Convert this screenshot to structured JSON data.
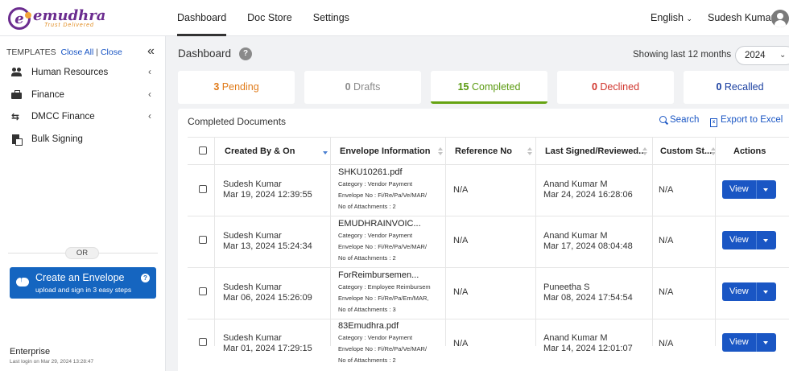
{
  "brand": {
    "name": "emudhra",
    "tagline": "Trust Delivered",
    "accent": "#6b2c8f"
  },
  "nav": {
    "items": [
      "Dashboard",
      "Doc Store",
      "Settings"
    ],
    "active": "Dashboard"
  },
  "header": {
    "language": "English",
    "user_name": "Sudesh Kumar"
  },
  "sidebar": {
    "templates_label": "TEMPLATES",
    "close_all": "Close All",
    "separator": "|",
    "close": "Close",
    "collapse_icon": "«",
    "items": [
      {
        "label": "Human Resources",
        "icon": "people-icon",
        "chevron": "‹"
      },
      {
        "label": "Finance",
        "icon": "briefcase-icon",
        "chevron": "‹"
      },
      {
        "label": "DMCC Finance",
        "icon": "swap-icon",
        "chevron": "‹"
      },
      {
        "label": "Bulk Signing",
        "icon": "documents-icon",
        "chevron": ""
      }
    ],
    "or_label": "OR",
    "create": {
      "title": "Create an Envelope",
      "subtitle": "upload and sign in 3 easy steps",
      "help": "?"
    },
    "plan": "Enterprise",
    "last_login": "Last login on Mar 29, 2024 13:28:47"
  },
  "dashboard": {
    "title": "Dashboard",
    "help": "?",
    "showing_label": "Showing last 12 months",
    "year": "2024",
    "stats": [
      {
        "count": "3",
        "label": "Pending",
        "color": "#e07b1a"
      },
      {
        "count": "0",
        "label": "Drafts",
        "color": "#8a8a8a"
      },
      {
        "count": "15",
        "label": "Completed",
        "color": "#5a9a10"
      },
      {
        "count": "0",
        "label": "Declined",
        "color": "#d0342c"
      },
      {
        "count": "0",
        "label": "Recalled",
        "color": "#1a3fa0"
      }
    ]
  },
  "table": {
    "title": "Completed Documents",
    "search_label": "Search",
    "export_label": "Export to Excel",
    "columns": [
      "Created By & On",
      "Envelope Information",
      "Reference No",
      "Last Signed/Reviewed...",
      "Custom St...",
      "Actions"
    ],
    "rows": [
      {
        "created_by": "Sudesh Kumar",
        "created_on": "Mar 19, 2024 12:39:55",
        "file": "SHKU10261.pdf",
        "category": "Category : Vendor Payment",
        "envelope_no": "Envelope No : Fi/Re/Pa/Ve/MAR/",
        "attachments": "No of Attachments : 2",
        "reference": "N/A",
        "last_by": "Anand Kumar M",
        "last_on": "Mar 24, 2024 16:28:06",
        "custom_status": "N/A",
        "action": "View"
      },
      {
        "created_by": "Sudesh Kumar",
        "created_on": "Mar 13, 2024 15:24:34",
        "file": "EMUDHRAINVOIC...",
        "category": "Category : Vendor Payment",
        "envelope_no": "Envelope No : Fi/Re/Pa/Ve/MAR/",
        "attachments": "No of Attachments : 2",
        "reference": "N/A",
        "last_by": "Anand Kumar M",
        "last_on": "Mar 17, 2024 08:04:48",
        "custom_status": "N/A",
        "action": "View"
      },
      {
        "created_by": "Sudesh Kumar",
        "created_on": "Mar 06, 2024 15:26:09",
        "file": "ForReimbursemen...",
        "category": "Category : Employee Reimbursem",
        "envelope_no": "Envelope No : Fi/Re/Pa/Em/MAR,",
        "attachments": "No of Attachments : 3",
        "reference": "N/A",
        "last_by": "Puneetha S",
        "last_on": "Mar 08, 2024 17:54:54",
        "custom_status": "N/A",
        "action": "View"
      },
      {
        "created_by": "Sudesh Kumar",
        "created_on": "Mar 01, 2024 17:29:15",
        "file": "83Emudhra.pdf",
        "category": "Category : Vendor Payment",
        "envelope_no": "Envelope No : Fi/Re/Pa/Ve/MAR/",
        "attachments": "No of Attachments : 2",
        "reference": "N/A",
        "last_by": "Anand Kumar M",
        "last_on": "Mar 14, 2024 12:01:07",
        "custom_status": "N/A",
        "action": "View"
      }
    ]
  }
}
